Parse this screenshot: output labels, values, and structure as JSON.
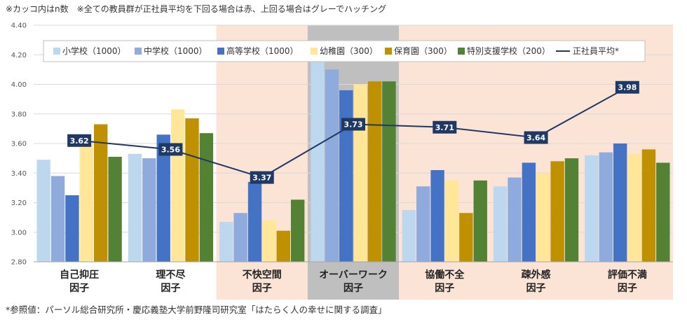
{
  "notes": {
    "top": "※カッコ内はn数　※全ての教員群が正社員平均を下回る場合は赤、上回る場合はグレーでハッチング",
    "bottom": "*参照値：パーソル総合研究所・慶応義塾大学前野隆司研究室「はたらく人の幸せに関する調査」"
  },
  "colors": {
    "hatch_red": "#fbe3d6",
    "hatch_gray": "#bfbfbf",
    "line": "#203864",
    "label_bg": "#203864"
  },
  "chart_data": {
    "type": "bar",
    "categories": [
      [
        "自己抑圧",
        "因子"
      ],
      [
        "理不尽",
        "因子"
      ],
      [
        "不快空間",
        "因子"
      ],
      [
        "オーバーワーク",
        "因子"
      ],
      [
        "協働不全",
        "因子"
      ],
      [
        "疎外感",
        "因子"
      ],
      [
        "評価不満",
        "因子"
      ]
    ],
    "category_hatch": [
      "none",
      "none",
      "red",
      "gray",
      "red",
      "red",
      "red"
    ],
    "ylim": [
      2.8,
      4.4
    ],
    "yticks": [
      "2.80",
      "3.00",
      "3.20",
      "3.40",
      "3.60",
      "3.80",
      "4.00",
      "4.20",
      "4.40"
    ],
    "grid": true,
    "legend_position": "top",
    "series": [
      {
        "name": "小学校（1000）",
        "color": "#bdd7ee",
        "values": [
          3.49,
          3.53,
          3.07,
          4.17,
          3.15,
          3.31,
          3.52
        ]
      },
      {
        "name": "中学校（1000）",
        "color": "#8faadc",
        "values": [
          3.38,
          3.5,
          3.13,
          4.1,
          3.31,
          3.37,
          3.54
        ]
      },
      {
        "name": "高等学校（1000）",
        "color": "#4472c4",
        "values": [
          3.25,
          3.66,
          3.34,
          3.96,
          3.42,
          3.47,
          3.6
        ]
      },
      {
        "name": "幼稚園（300）",
        "color": "#ffe699",
        "values": [
          3.62,
          3.83,
          3.08,
          4.0,
          3.35,
          3.4,
          3.53
        ]
      },
      {
        "name": "保育園（300）",
        "color": "#bf9000",
        "values": [
          3.73,
          3.77,
          3.01,
          4.02,
          3.13,
          3.48,
          3.56
        ]
      },
      {
        "name": "特別支援学校（200）",
        "color": "#548235",
        "values": [
          3.51,
          3.67,
          3.22,
          4.02,
          3.35,
          3.5,
          3.47
        ]
      }
    ],
    "line": {
      "name": "正社員平均*",
      "values": [
        3.62,
        3.56,
        3.37,
        3.73,
        3.71,
        3.64,
        3.98
      ],
      "labels": [
        "3.62",
        "3.56",
        "3.37",
        "3.73",
        "3.71",
        "3.64",
        "3.98"
      ]
    }
  }
}
